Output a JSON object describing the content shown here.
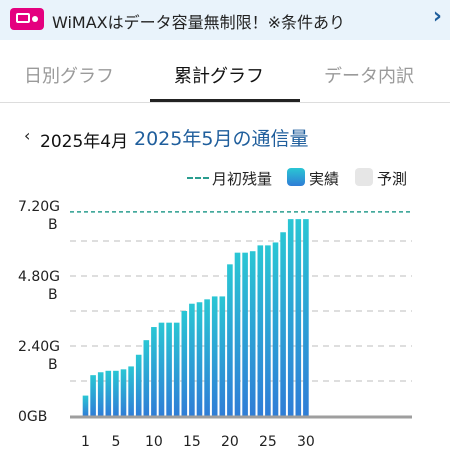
{
  "banner": {
    "text": "WiMAXはデータ容量無制限！※条件あり"
  },
  "tabs": [
    {
      "label": "日別グラフ",
      "active": false
    },
    {
      "label": "累計グラフ",
      "active": true
    },
    {
      "label": "データ内訳",
      "active": false
    }
  ],
  "month_nav": {
    "prev_label": "2025年4月",
    "current_title": "2025年5月の通信量"
  },
  "legend": {
    "monthly_remaining": "月初残量",
    "actual": "実績",
    "forecast": "予測"
  },
  "colors": {
    "accent": "#1f5e9c",
    "bar_top": "#2ac6d4",
    "bar_bottom": "#2f7dd6",
    "threshold_line": "#2a9d8f",
    "banner_icon": "#e4007f"
  },
  "chart_data": {
    "type": "bar",
    "title": "2025年5月の通信量",
    "x": [
      1,
      2,
      3,
      4,
      5,
      6,
      7,
      8,
      9,
      10,
      11,
      12,
      13,
      14,
      15,
      16,
      17,
      18,
      19,
      20,
      21,
      22,
      23,
      24,
      25,
      26,
      27,
      28,
      29,
      30
    ],
    "x_ticks": [
      "1",
      "5",
      "10",
      "15",
      "20",
      "25",
      "30"
    ],
    "x_tick_values": [
      1,
      5,
      10,
      15,
      20,
      25,
      30
    ],
    "y_ticks": [
      {
        "value": 0,
        "line1": "0GB",
        "line2": ""
      },
      {
        "value": 2.4,
        "line1": "2.40G",
        "line2": "B"
      },
      {
        "value": 4.8,
        "line1": "4.80G",
        "line2": "B"
      },
      {
        "value": 7.2,
        "line1": "7.20G",
        "line2": "B"
      }
    ],
    "ylim": [
      0,
      7.2
    ],
    "series": [
      {
        "name": "実績",
        "values": [
          0.7,
          1.4,
          1.5,
          1.55,
          1.55,
          1.6,
          1.7,
          2.1,
          2.6,
          3.05,
          3.2,
          3.2,
          3.2,
          3.6,
          3.85,
          3.9,
          4.0,
          4.1,
          4.1,
          5.2,
          5.6,
          5.6,
          5.65,
          5.85,
          5.85,
          5.95,
          6.3,
          6.75,
          6.75,
          6.75
        ]
      }
    ],
    "threshold": {
      "name": "月初残量",
      "value": 7.0
    },
    "grid": true
  }
}
